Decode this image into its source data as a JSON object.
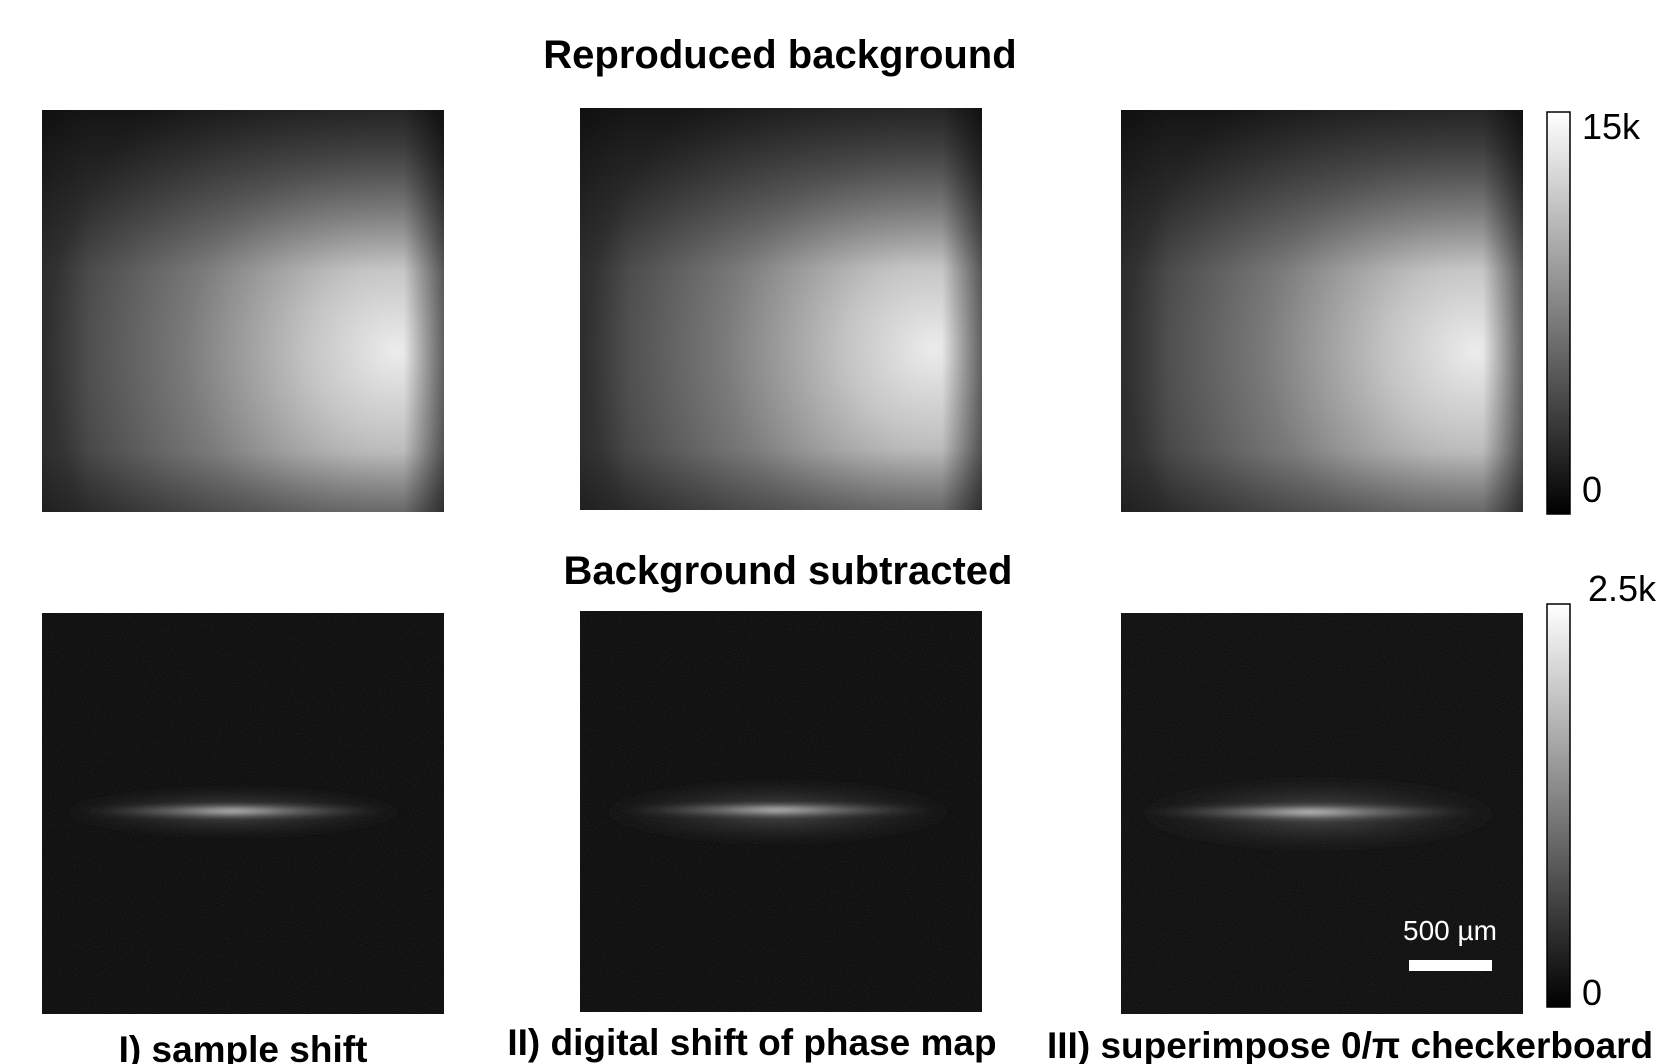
{
  "titles": {
    "top": "Reproduced background",
    "bottom": "Background subtracted"
  },
  "colorbars": [
    {
      "max": "15k",
      "min": "0"
    },
    {
      "max": "2.5k",
      "min": "0"
    }
  ],
  "scale_bar": "500 µm",
  "panel_labels": [
    "I) sample shift",
    "II) digital shift of phase map",
    "III) superimpose 0/π checkerboard"
  ]
}
